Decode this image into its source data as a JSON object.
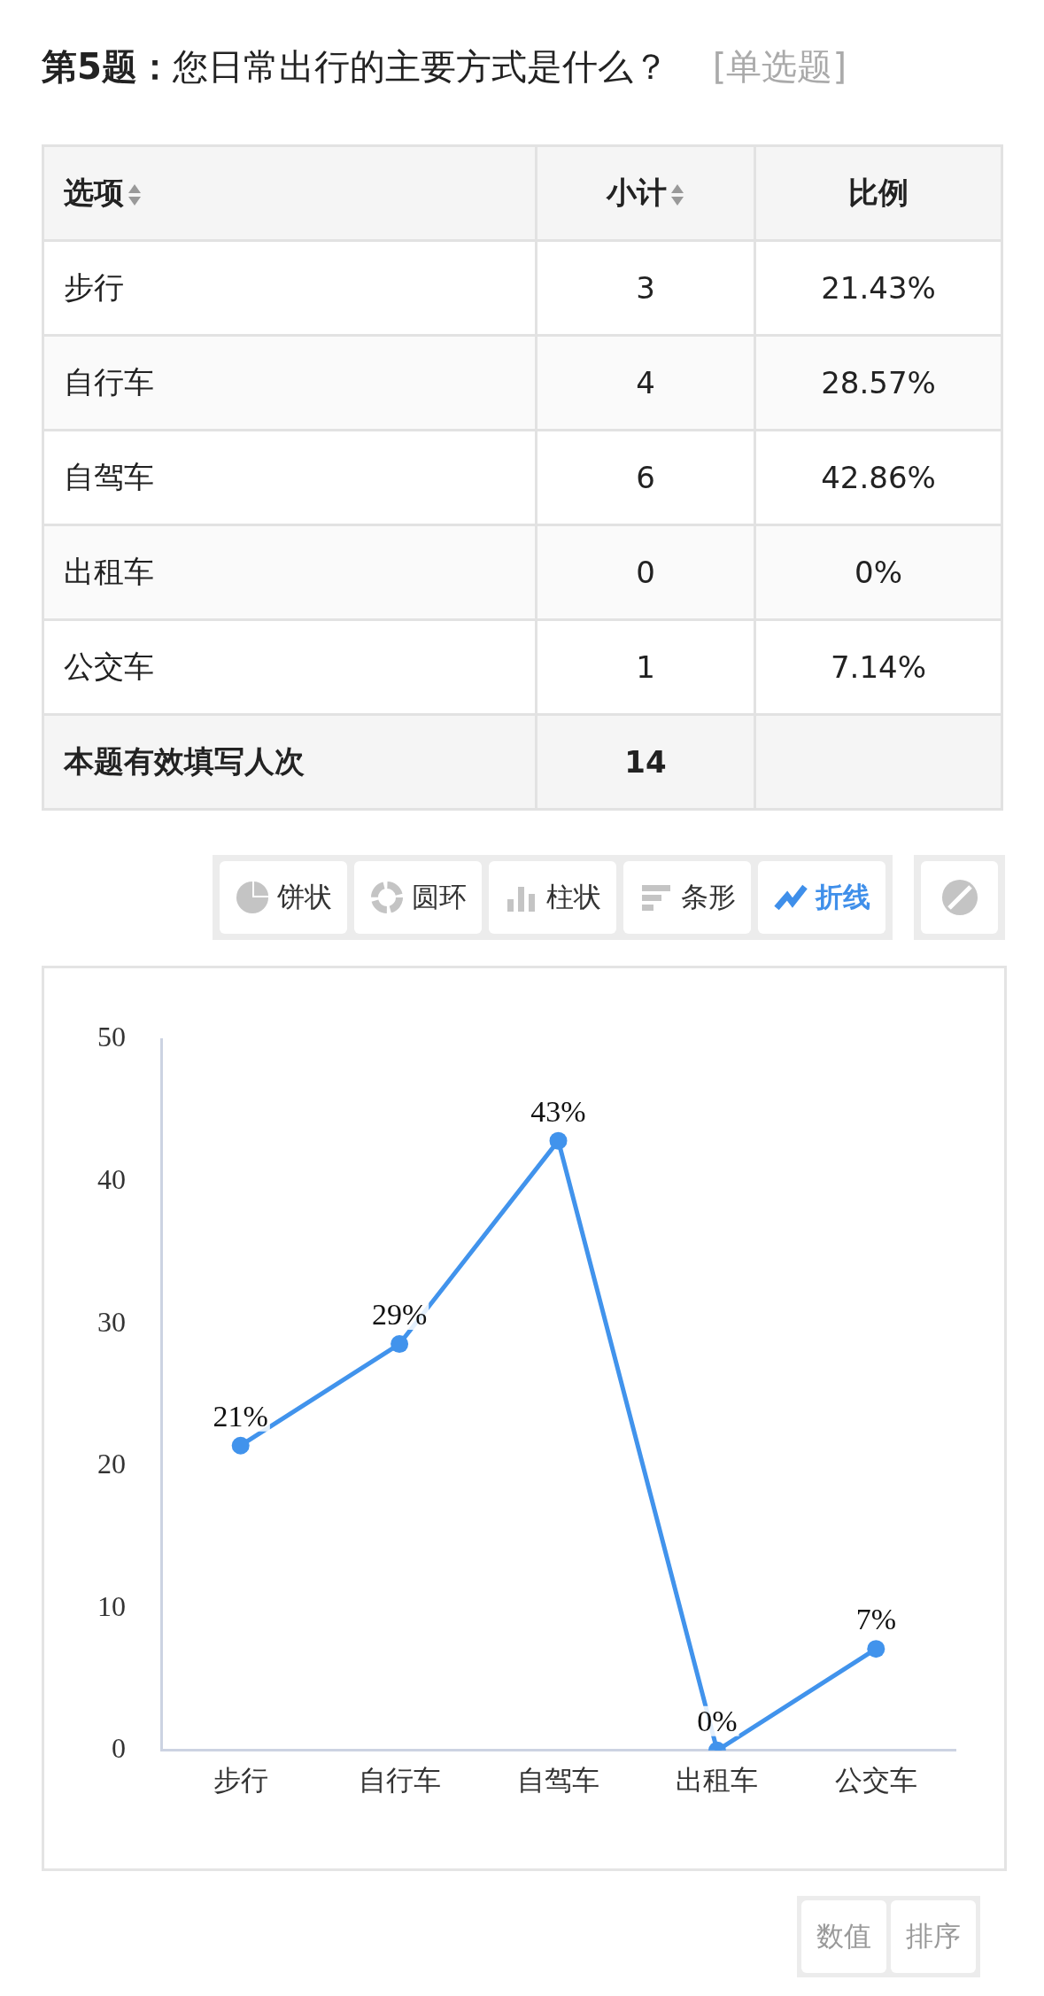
{
  "chart_data": {
    "type": "line",
    "title": "第5题：",
    "subtitle": "您日常出行的主要方式是什么？",
    "categories": [
      "步行",
      "自行车",
      "自驾车",
      "出租车",
      "公交车"
    ],
    "series": [
      {
        "color": "#4193ec",
        "values": [
          21.43,
          28.57,
          42.86,
          0,
          7.14
        ],
        "value_labels": [
          "21%",
          "29%",
          "43%",
          "0%",
          "7%"
        ]
      }
    ],
    "ylim": [
      0,
      50
    ],
    "yticks": [
      0,
      10,
      20,
      30,
      40,
      50
    ],
    "grid": false,
    "marker": "circle",
    "line_style": "solid",
    "annotations": [
      "[单选题]",
      "选项",
      "小计",
      "比例",
      "3",
      "21.43%",
      "4",
      "28.57%",
      "6",
      "42.86%",
      "0",
      "0%",
      "1",
      "7.14%",
      "本题有效填写人次",
      "14",
      "饼状",
      "圆环",
      "柱状",
      "条形",
      "折线",
      "数值",
      "排序"
    ]
  }
}
